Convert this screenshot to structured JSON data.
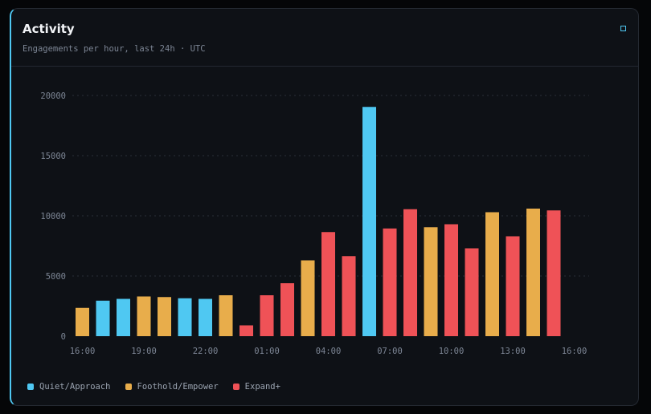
{
  "card": {
    "title": "Activity",
    "subtitle": "Engagements per hour, last 24h · UTC",
    "corner_icon": "square-outline-icon"
  },
  "colors": {
    "quiet": "#4fc8f2",
    "foothold": "#e8ad4b",
    "expand": "#ef5257",
    "grid": "#2a2f38",
    "axis_text": "#7c8594",
    "accent": "#4fc8f2"
  },
  "legend": [
    {
      "label": "Quiet/Approach",
      "key": "quiet"
    },
    {
      "label": "Foothold/Empower",
      "key": "foothold"
    },
    {
      "label": "Expand+",
      "key": "expand"
    }
  ],
  "chart_data": {
    "type": "bar",
    "title": "",
    "xlabel": "",
    "ylabel": "",
    "ylim": [
      0,
      20000
    ],
    "yticks": [
      0,
      5000,
      10000,
      15000,
      20000
    ],
    "xticks": [
      "16:00",
      "19:00",
      "22:00",
      "01:00",
      "04:00",
      "07:00",
      "10:00",
      "13:00",
      "16:00"
    ],
    "grid": true,
    "legend_position": "bottom-left",
    "bars": [
      {
        "value": 2350,
        "stage": "foothold"
      },
      {
        "value": 2950,
        "stage": "quiet"
      },
      {
        "value": 3100,
        "stage": "quiet"
      },
      {
        "value": 3300,
        "stage": "foothold"
      },
      {
        "value": 3250,
        "stage": "foothold"
      },
      {
        "value": 3150,
        "stage": "quiet"
      },
      {
        "value": 3100,
        "stage": "quiet"
      },
      {
        "value": 3400,
        "stage": "foothold"
      },
      {
        "value": 900,
        "stage": "expand"
      },
      {
        "value": 3400,
        "stage": "expand"
      },
      {
        "value": 4400,
        "stage": "expand"
      },
      {
        "value": 6300,
        "stage": "foothold"
      },
      {
        "value": 8650,
        "stage": "expand"
      },
      {
        "value": 6650,
        "stage": "expand"
      },
      {
        "value": 19050,
        "stage": "quiet"
      },
      {
        "value": 8950,
        "stage": "expand"
      },
      {
        "value": 10550,
        "stage": "expand"
      },
      {
        "value": 9050,
        "stage": "foothold"
      },
      {
        "value": 9300,
        "stage": "expand"
      },
      {
        "value": 7300,
        "stage": "expand"
      },
      {
        "value": 10300,
        "stage": "foothold"
      },
      {
        "value": 8300,
        "stage": "expand"
      },
      {
        "value": 10600,
        "stage": "foothold"
      },
      {
        "value": 10450,
        "stage": "expand"
      }
    ]
  }
}
